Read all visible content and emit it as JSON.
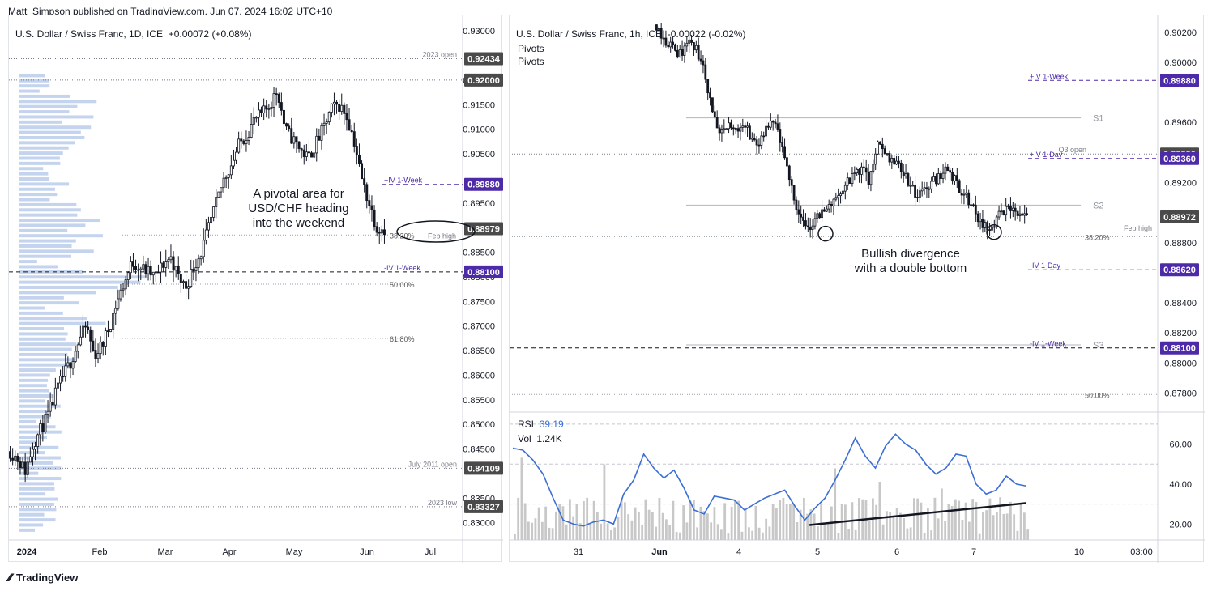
{
  "header": {
    "publisher": "Matt_Simpson published on TradingView.com, Jun 07, 2024 16:02 UTC+10"
  },
  "footer": {
    "brand": "TradingView"
  },
  "colors": {
    "candle": "#131722",
    "rsi": "#3b6fd4",
    "volume": "#c8c8c8",
    "profile": "#b2c6e8",
    "badge_dark": "#4a4a4a",
    "badge_purple": "#4d2aa8"
  },
  "chart_data": [
    {
      "type": "candlestick",
      "title": "U.S. Dollar / Swiss Franc, 1D, ICE",
      "change": "+0.00072 (+0.08%)",
      "x_ticks": [
        "2024",
        "Feb",
        "Mar",
        "Apr",
        "May",
        "Jun",
        "Jul"
      ],
      "y_ticks": [
        "0.93000",
        "0.92000",
        "0.91500",
        "0.91000",
        "0.90500",
        "0.89500",
        "0.88500",
        "0.88000",
        "0.87500",
        "0.87000",
        "0.86500",
        "0.86000",
        "0.85500",
        "0.85000",
        "0.84500",
        "0.83500",
        "0.83000"
      ],
      "ylim": [
        0.8265,
        0.9315
      ],
      "close_path": [
        0.8445,
        0.843,
        0.8405,
        0.846,
        0.849,
        0.852,
        0.8565,
        0.86,
        0.863,
        0.867,
        0.87,
        0.864,
        0.866,
        0.87,
        0.875,
        0.879,
        0.883,
        0.882,
        0.881,
        0.88,
        0.8825,
        0.884,
        0.88,
        0.878,
        0.882,
        0.885,
        0.89,
        0.895,
        0.9,
        0.903,
        0.907,
        0.909,
        0.912,
        0.913,
        0.915,
        0.918,
        0.91,
        0.908,
        0.906,
        0.904,
        0.907,
        0.91,
        0.914,
        0.915,
        0.913,
        0.908,
        0.9,
        0.895,
        0.89,
        0.8898
      ],
      "levels": [
        {
          "label": "2023 open",
          "badge": "0.92434",
          "value": 0.92434,
          "style": "dotted",
          "color": "dark"
        },
        {
          "label": "",
          "badge": "0.92000",
          "value": 0.92,
          "style": "dotted",
          "color": "dark"
        },
        {
          "label": "+IV 1-Week",
          "badge": "0.89880",
          "value": 0.8988,
          "style": "dashed",
          "color": "purple"
        },
        {
          "label": "",
          "badge": "0.88979",
          "value": 0.88979,
          "style": "none",
          "color": "none"
        },
        {
          "label": "-IV 1-Week",
          "badge": "0.88100",
          "value": 0.881,
          "style": "dashed",
          "color": "purple"
        },
        {
          "label": "July 2011 open",
          "badge": "0.84109",
          "value": 0.84109,
          "style": "dotted",
          "color": "dark"
        },
        {
          "label": "2023 low",
          "badge": "0.83327",
          "value": 0.83327,
          "style": "dotted",
          "color": "dark"
        }
      ],
      "fib": [
        {
          "label": "38.20%",
          "value": 0.8885
        },
        {
          "label": "50.00%",
          "value": 0.8785
        },
        {
          "label": "61.80%",
          "value": 0.8675
        }
      ],
      "feb_high_label": "Feb high",
      "annotation": "A pivotal area for USD/CHF heading into the weekend"
    },
    {
      "type": "candlestick",
      "title": "U.S. Dollar / Swiss Franc, 1h, ICE",
      "change": "-0.00022 (-0.02%)",
      "studies": [
        "Pivots",
        "Pivots"
      ],
      "x_ticks": [
        "31",
        "Jun",
        "4",
        "5",
        "6",
        "7",
        "10",
        "03:00"
      ],
      "y_ticks": [
        "0.90200",
        "0.90000",
        "0.89600",
        "0.89200",
        "0.88800",
        "0.88400",
        "0.88200",
        "0.88000",
        "0.87800"
      ],
      "ylim": [
        0.877,
        0.9028
      ],
      "close_path": [
        0.9025,
        0.9015,
        0.901,
        0.9005,
        0.9015,
        0.9008,
        0.8995,
        0.897,
        0.895,
        0.8958,
        0.8955,
        0.896,
        0.895,
        0.8945,
        0.8955,
        0.896,
        0.894,
        0.892,
        0.89,
        0.8888,
        0.8895,
        0.89,
        0.8905,
        0.8912,
        0.8918,
        0.8925,
        0.893,
        0.892,
        0.8945,
        0.894,
        0.8935,
        0.893,
        0.892,
        0.891,
        0.8915,
        0.892,
        0.8925,
        0.893,
        0.892,
        0.8912,
        0.8905,
        0.8895,
        0.8888,
        0.8895,
        0.89,
        0.8902,
        0.8898,
        0.8897
      ],
      "levels": [
        {
          "label": "+IV 1-Week",
          "badge": "0.89880",
          "value": 0.8988,
          "style": "dashed",
          "color": "purple"
        },
        {
          "label": "Q3 open",
          "badge": "0.89390",
          "value": 0.8939,
          "style": "dotted",
          "color": "dark"
        },
        {
          "label": "+IV 1-Day",
          "badge": "0.89360",
          "value": 0.8936,
          "style": "dashed",
          "color": "purple"
        },
        {
          "label": "",
          "badge": "0.88972",
          "value": 0.88972,
          "style": "none",
          "color": "dark"
        },
        {
          "label": "-IV 1-Day",
          "badge": "0.88620",
          "value": 0.8862,
          "style": "dashed",
          "color": "purple"
        },
        {
          "label": "-IV 1-Week",
          "badge": "0.88100",
          "value": 0.881,
          "style": "dashed",
          "color": "purple"
        }
      ],
      "pivots": [
        {
          "label": "S1",
          "value": 0.8963
        },
        {
          "label": "S2",
          "value": 0.8905
        },
        {
          "label": "S3",
          "value": 0.8812
        }
      ],
      "fib": [
        {
          "label": "38.20%",
          "value": 0.8884
        },
        {
          "label": "50.00%",
          "value": 0.8779
        }
      ],
      "feb_high_label": "Feb high",
      "annotation": "Bullish divergence with a double bottom",
      "rsi": {
        "label": "RSI",
        "value": "39.19",
        "vol_label": "Vol",
        "vol_value": "1.24K",
        "y_ticks": [
          "60.00",
          "40.00",
          "20.00"
        ],
        "ylim": [
          12,
          72
        ],
        "path": [
          58,
          57,
          52,
          45,
          33,
          22,
          20,
          19,
          21,
          22,
          20,
          35,
          42,
          55,
          48,
          43,
          47,
          38,
          27,
          25,
          34,
          33,
          32,
          27,
          30,
          33,
          35,
          37,
          29,
          22,
          28,
          33,
          42,
          52,
          63,
          54,
          48,
          59,
          65,
          60,
          57,
          50,
          45,
          48,
          55,
          54,
          40,
          35,
          37,
          44,
          40,
          39
        ]
      }
    }
  ]
}
